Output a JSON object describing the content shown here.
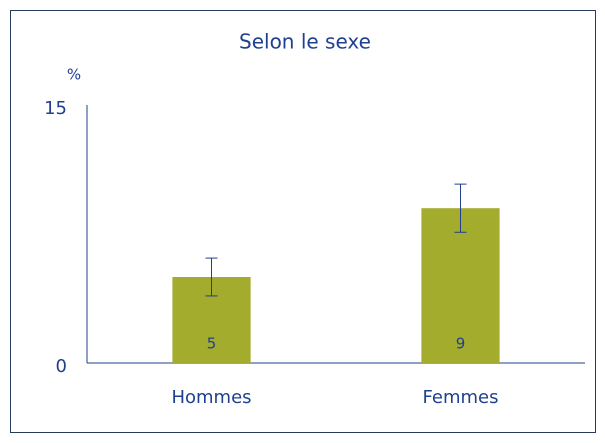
{
  "chart_data": {
    "type": "bar",
    "title": "Selon le sexe",
    "y_label": "%",
    "categories": [
      "Hommes",
      "Femmes"
    ],
    "values": [
      5,
      9
    ],
    "errors": [
      1.1,
      1.4
    ],
    "color": "#a3ac2c",
    "ylim": [
      0,
      15
    ],
    "yticks": [
      0,
      15
    ],
    "grid": false
  }
}
